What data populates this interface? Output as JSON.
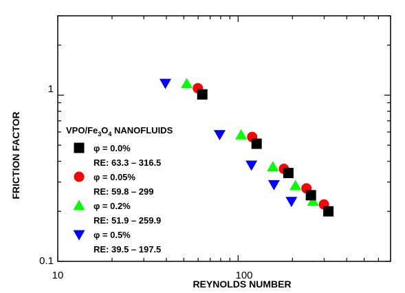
{
  "chart_data": {
    "type": "scatter",
    "title": "",
    "xlabel": "REYNOLDS NUMBER",
    "ylabel": "FRICTION FACTOR",
    "xscale": "log",
    "yscale": "log",
    "xlim": [
      10,
      700
    ],
    "ylim": [
      0.1,
      3.0
    ],
    "x_tick_labels": [
      "10",
      "100"
    ],
    "y_tick_labels": [
      "0.1",
      "1"
    ],
    "grid": false,
    "legend_title": {
      "prefix": "VPO/Fe",
      "sub3": "3",
      "mid": "O",
      "sub4": "4",
      "suffix": " NANOFLUIDS"
    },
    "legend_placement": "center-left",
    "series": [
      {
        "name": "φ = 0.0%",
        "range_label": "RE: 63.3 – 316.5",
        "marker": "square",
        "color": "#000000",
        "x": [
          63.3,
          126.6,
          189.9,
          253.2,
          316.5
        ],
        "y": [
          1.01,
          0.51,
          0.34,
          0.25,
          0.2
        ]
      },
      {
        "name": "φ = 0.05%",
        "range_label": "RE: 59.8 – 299",
        "marker": "circle",
        "color": "#ff0000",
        "x": [
          59.8,
          119.6,
          179.4,
          239.2,
          299
        ],
        "y": [
          1.1,
          0.56,
          0.36,
          0.275,
          0.22
        ]
      },
      {
        "name": "φ = 0.2%",
        "range_label": "RE: 51.9 – 259.9",
        "marker": "triangle-up",
        "color": "#00ff00",
        "x": [
          51.9,
          103.9,
          155.9,
          207.9,
          259.9
        ],
        "y": [
          1.17,
          0.575,
          0.37,
          0.285,
          0.23
        ]
      },
      {
        "name": "φ = 0.5%",
        "range_label": "RE: 39.5 – 197.5",
        "marker": "triangle-down",
        "color": "#0000ff",
        "x": [
          39.5,
          79,
          118.5,
          158,
          197.5
        ],
        "y": [
          1.18,
          0.58,
          0.38,
          0.29,
          0.23
        ]
      }
    ]
  }
}
